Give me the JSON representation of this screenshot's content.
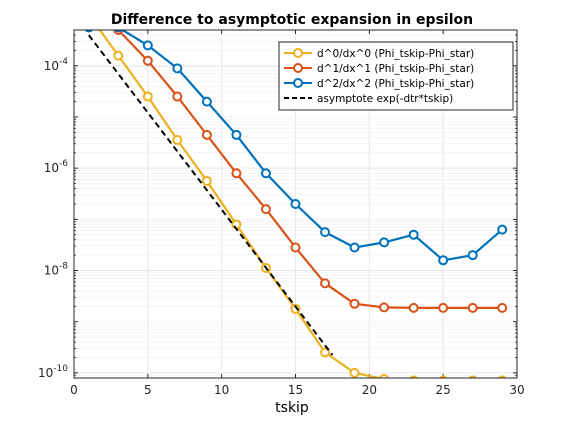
{
  "chart_data": {
    "type": "line",
    "title": "Difference to asymptotic expansion in epsilon",
    "xlabel": "tskip",
    "ylabel": "",
    "xlim": [
      0,
      30
    ],
    "ylim": [
      -10.1,
      -3.3
    ],
    "yscale": "log",
    "grid": true,
    "legend_position": "top-right",
    "x_ticks": [
      "0",
      "5",
      "10",
      "15",
      "20",
      "25",
      "30"
    ],
    "y_ticks": [
      {
        "exp": -4,
        "base": "10",
        "power": "-4"
      },
      {
        "exp": -6,
        "base": "10",
        "power": "-6"
      },
      {
        "exp": -8,
        "base": "10",
        "power": "-8"
      },
      {
        "exp": -10,
        "base": "10",
        "power": "-10"
      }
    ],
    "series": [
      {
        "name": "d^0/dx^0   (Phi_tskip-Phi_star)",
        "color": "#EDB120",
        "marker": "circle",
        "x": [
          1,
          3,
          5,
          7,
          9,
          11,
          13,
          15,
          17,
          19,
          21,
          23,
          25,
          27,
          29
        ],
        "log10_y": [
          -3.0,
          -3.8,
          -4.6,
          -5.45,
          -6.25,
          -7.1,
          -7.95,
          -8.75,
          -9.6,
          -10.0,
          -10.12,
          -10.15,
          -10.15,
          -10.15,
          -10.15
        ]
      },
      {
        "name": "d^1/dx^1   (Phi_tskip-Phi_star)",
        "color": "#D95319",
        "marker": "circle",
        "x": [
          1,
          3,
          5,
          7,
          9,
          11,
          13,
          15,
          17,
          19,
          21,
          23,
          25,
          27,
          29
        ],
        "log10_y": [
          -3.15,
          -3.3,
          -3.9,
          -4.6,
          -5.35,
          -6.1,
          -6.8,
          -7.55,
          -8.25,
          -8.65,
          -8.72,
          -8.73,
          -8.73,
          -8.73,
          -8.73
        ]
      },
      {
        "name": "d^2/dx^2   (Phi_tskip-Phi_star)",
        "color": "#0072BD",
        "marker": "circle",
        "x": [
          1,
          3,
          5,
          7,
          9,
          11,
          13,
          15,
          17,
          19,
          21,
          23,
          25,
          27,
          29
        ],
        "log10_y": [
          -3.25,
          -3.25,
          -3.6,
          -4.05,
          -4.7,
          -5.35,
          -6.1,
          -6.7,
          -7.25,
          -7.55,
          -7.45,
          -7.3,
          -7.8,
          -7.7,
          -7.2
        ]
      },
      {
        "name": "asymptote exp(-dtr*tskip)",
        "color": "#000000",
        "dashed": true,
        "x": [
          1,
          17.5
        ],
        "log10_y": [
          -3.4,
          -9.65
        ]
      }
    ]
  }
}
